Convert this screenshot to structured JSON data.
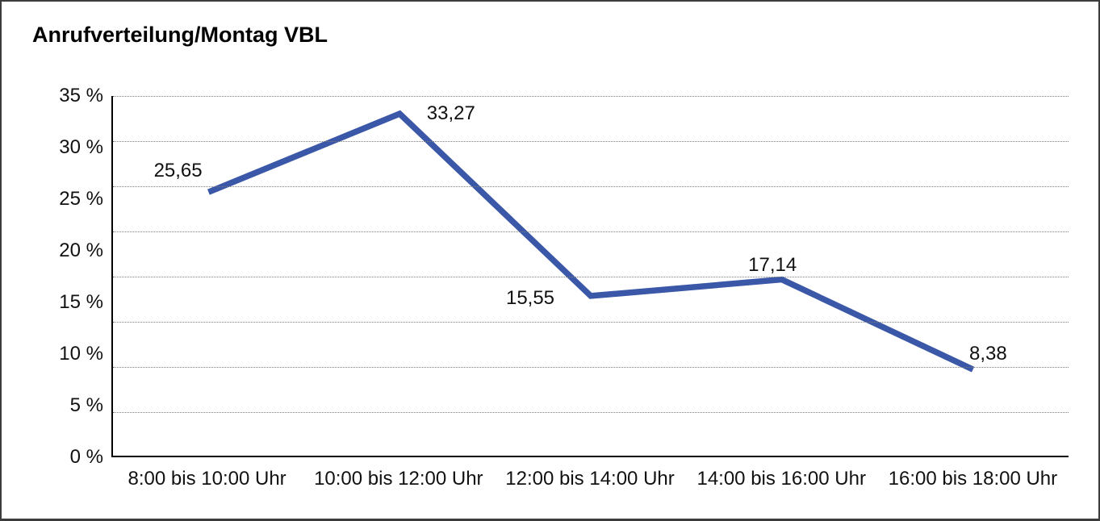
{
  "header": {
    "title": "Anrufverteilung/Montag VBL"
  },
  "chart_data": {
    "type": "line",
    "title": "Anrufverteilung/Montag VBL",
    "categories": [
      "8:00 bis 10:00 Uhr",
      "10:00 bis 12:00 Uhr",
      "12:00 bis 14:00 Uhr",
      "14:00 bis 16:00 Uhr",
      "16:00 bis 18:00 Uhr"
    ],
    "values": [
      25.65,
      33.27,
      15.55,
      17.14,
      8.38
    ],
    "value_labels": [
      "25,65",
      "33,27",
      "15,55",
      "17,14",
      "8,38"
    ],
    "y_ticks": [
      "35 %",
      "30 %",
      "25 %",
      "20 %",
      "15 %",
      "10 %",
      "5 %",
      "0 %"
    ],
    "ylim": [
      0,
      35
    ],
    "grid_divisions": 8,
    "grid_style": "dotted horizontal",
    "legend": "none",
    "line_color": "#3A57A8",
    "axis_color": "#000000",
    "text_color": "#111111"
  }
}
